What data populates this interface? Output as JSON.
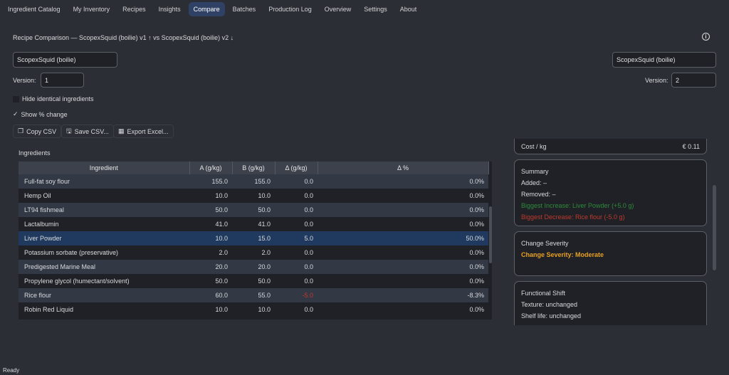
{
  "tabs": [
    "Ingredient Catalog",
    "My Inventory",
    "Recipes",
    "Insights",
    "Compare",
    "Batches",
    "Production Log",
    "Overview",
    "Settings",
    "About"
  ],
  "active_tab": "Compare",
  "title": "Recipe Comparison — ScopexSquid (boilie) v1 ↑ vs ScopexSquid (boilie) v2 ↓",
  "recipe_a": {
    "name": "ScopexSquid (boilie)",
    "version_label": "Version:",
    "version": "1"
  },
  "recipe_b": {
    "name": "ScopexSquid (boilie)",
    "version_label": "Version:",
    "version": "2"
  },
  "options": {
    "hide_identical": "Hide identical ingredients",
    "hide_identical_checked": false,
    "show_pct": "Show % change",
    "show_pct_checked": true
  },
  "buttons": {
    "copy_csv": "Copy CSV",
    "save_csv": "Save CSV...",
    "export_excel": "Export Excel..."
  },
  "ingredients_label": "Ingredients",
  "table": {
    "headers": [
      "Ingredient",
      "A (g/kg)",
      "B (g/kg)",
      "Δ (g/kg)",
      "Δ %"
    ],
    "rows": [
      [
        "Full-fat soy flour",
        "155.0",
        "155.0",
        "0.0",
        "0.0%"
      ],
      [
        "Hemp Oil",
        "10.0",
        "10.0",
        "0.0",
        "0.0%"
      ],
      [
        "LT94 fishmeal",
        "50.0",
        "50.0",
        "0.0",
        "0.0%"
      ],
      [
        "Lactalbumin",
        "41.0",
        "41.0",
        "0.0",
        "0.0%"
      ],
      [
        "Liver Powder",
        "10.0",
        "15.0",
        "5.0",
        "50.0%"
      ],
      [
        "Potassium sorbate (preservative)",
        "2.0",
        "2.0",
        "0.0",
        "0.0%"
      ],
      [
        "Predigested Marine Meal",
        "20.0",
        "20.0",
        "0.0",
        "0.0%"
      ],
      [
        "Propylene glycol (humectant/solvent)",
        "50.0",
        "50.0",
        "0.0",
        "0.0%"
      ],
      [
        "Rice flour",
        "60.0",
        "55.0",
        "-5.0",
        "-8.3%"
      ],
      [
        "Robin Red Liquid",
        "10.0",
        "10.0",
        "0.0",
        "0.0%"
      ]
    ],
    "selected_row": 4
  },
  "cost": {
    "label": "Cost / kg",
    "value": "€ 0.11"
  },
  "summary": {
    "title": "Summary",
    "added": "Added: –",
    "removed": "Removed: –",
    "increase": "Biggest Increase: Liver Powder (+5.0 g)",
    "decrease": "Biggest Decrease: Rice flour (-5.0 g)"
  },
  "severity": {
    "title": "Change Severity",
    "value": "Change Severity: Moderate"
  },
  "functional": {
    "title": "Functional Shift",
    "texture": "Texture: unchanged",
    "shelf_life": "Shelf life: unchanged"
  },
  "colors": {
    "accent": "#2f4266",
    "increase": "#2e8b3a",
    "decrease": "#c0392b",
    "severity": "#e8a020"
  },
  "status": "Ready"
}
